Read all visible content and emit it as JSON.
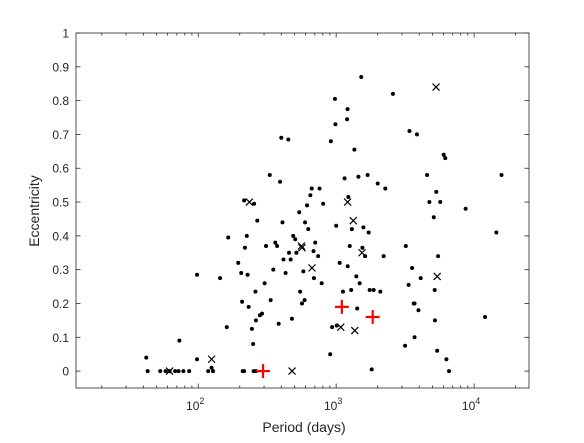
{
  "chart_data": {
    "type": "scatter",
    "title": "",
    "xlabel": "Period (days)",
    "ylabel": "Eccentricity",
    "xscale": "log",
    "xlim": [
      13,
      25000
    ],
    "ylim": [
      -0.05,
      1
    ],
    "grid": false,
    "legend": "none",
    "x_ticks": [
      {
        "value": 100,
        "base": "10",
        "exp": "2"
      },
      {
        "value": 1000,
        "base": "10",
        "exp": "3"
      },
      {
        "value": 10000,
        "base": "10",
        "exp": "4"
      }
    ],
    "y_ticks": [
      {
        "value": 0,
        "label": "0"
      },
      {
        "value": 0.1,
        "label": "0.1"
      },
      {
        "value": 0.2,
        "label": "0.2"
      },
      {
        "value": 0.3,
        "label": "0.3"
      },
      {
        "value": 0.4,
        "label": "0.4"
      },
      {
        "value": 0.5,
        "label": "0.5"
      },
      {
        "value": 0.6,
        "label": "0.6"
      },
      {
        "value": 0.7,
        "label": "0.7"
      },
      {
        "value": 0.8,
        "label": "0.8"
      },
      {
        "value": 0.9,
        "label": "0.9"
      },
      {
        "value": 1,
        "label": "1"
      }
    ],
    "colors": {
      "dots": "#000000",
      "crosses": "#000000",
      "plus": "#ff0000",
      "axes": "#262626"
    },
    "series": [
      {
        "marker": "dot",
        "color": "#000000",
        "points": [
          [
            42,
            0.04
          ],
          [
            43,
            0
          ],
          [
            53,
            0
          ],
          [
            58,
            0
          ],
          [
            62,
            0
          ],
          [
            68,
            0
          ],
          [
            72,
            0
          ],
          [
            78,
            0
          ],
          [
            86,
            0
          ],
          [
            118,
            0
          ],
          [
            128,
            0
          ],
          [
            210,
            0
          ],
          [
            215,
            0
          ],
          [
            252,
            0
          ],
          [
            262,
            0
          ],
          [
            73,
            0.09
          ],
          [
            98,
            0.035
          ],
          [
            98,
            0.285
          ],
          [
            125,
            0.01
          ],
          [
            144,
            0.275
          ],
          [
            161,
            0.13
          ],
          [
            165,
            0.395
          ],
          [
            195,
            0.32
          ],
          [
            205,
            0.29
          ],
          [
            208,
            0.205
          ],
          [
            215,
            0.505
          ],
          [
            218,
            0.365
          ],
          [
            225,
            0.4
          ],
          [
            228,
            0.285
          ],
          [
            232,
            0.19
          ],
          [
            245,
            0.125
          ],
          [
            250,
            0.08
          ],
          [
            254,
            0.495
          ],
          [
            260,
            0.235
          ],
          [
            262,
            0.15
          ],
          [
            268,
            0.445
          ],
          [
            280,
            0.165
          ],
          [
            290,
            0.17
          ],
          [
            303,
            0.26
          ],
          [
            310,
            0.37
          ],
          [
            330,
            0.58
          ],
          [
            335,
            0.21
          ],
          [
            350,
            0.3
          ],
          [
            362,
            0.38
          ],
          [
            373,
            0.37
          ],
          [
            383,
            0.14
          ],
          [
            392,
            0.56
          ],
          [
            400,
            0.69
          ],
          [
            408,
            0.44
          ],
          [
            415,
            0.33
          ],
          [
            430,
            0.29
          ],
          [
            450,
            0.685
          ],
          [
            455,
            0.35
          ],
          [
            468,
            0.33
          ],
          [
            478,
            0.155
          ],
          [
            488,
            0.4
          ],
          [
            505,
            0.39
          ],
          [
            515,
            0.35
          ],
          [
            540,
            0.47
          ],
          [
            548,
            0.235
          ],
          [
            565,
            0.2
          ],
          [
            578,
            0.295
          ],
          [
            590,
            0.21
          ],
          [
            595,
            0.44
          ],
          [
            615,
            0.49
          ],
          [
            628,
            0.42
          ],
          [
            650,
            0.52
          ],
          [
            665,
            0.54
          ],
          [
            685,
            0.355
          ],
          [
            690,
            0.275
          ],
          [
            705,
            0.38
          ],
          [
            740,
            0.34
          ],
          [
            758,
            0.54
          ],
          [
            785,
            0.26
          ],
          [
            805,
            0.495
          ],
          [
            905,
            0.05
          ],
          [
            915,
            0.68
          ],
          [
            935,
            0.13
          ],
          [
            980,
            0.805
          ],
          [
            988,
            0.73
          ],
          [
            1000,
            0.43
          ],
          [
            1010,
            0.135
          ],
          [
            1060,
            0.32
          ],
          [
            1120,
            0.235
          ],
          [
            1150,
            0.57
          ],
          [
            1200,
            0.745
          ],
          [
            1210,
            0.775
          ],
          [
            1212,
            0.31
          ],
          [
            1225,
            0.515
          ],
          [
            1255,
            0.37
          ],
          [
            1285,
            0.24
          ],
          [
            1300,
            0.42
          ],
          [
            1355,
            0.655
          ],
          [
            1400,
            0.28
          ],
          [
            1420,
            0.185
          ],
          [
            1450,
            0.575
          ],
          [
            1480,
            0.26
          ],
          [
            1520,
            0.87
          ],
          [
            1550,
            0.365
          ],
          [
            1575,
            0.425
          ],
          [
            1620,
            0.34
          ],
          [
            1690,
            0.58
          ],
          [
            1720,
            0.41
          ],
          [
            1750,
            0.24
          ],
          [
            1810,
            0.005
          ],
          [
            1870,
            0.24
          ],
          [
            2000,
            0.555
          ],
          [
            2090,
            0.235
          ],
          [
            2210,
            0.34
          ],
          [
            2270,
            0.54
          ],
          [
            2580,
            0.82
          ],
          [
            3160,
            0.075
          ],
          [
            3200,
            0.37
          ],
          [
            3350,
            0.255
          ],
          [
            3400,
            0.71
          ],
          [
            3550,
            0.305
          ],
          [
            3650,
            0.2
          ],
          [
            3700,
            0.2
          ],
          [
            3850,
            0.7
          ],
          [
            3950,
            0.18
          ],
          [
            4560,
            0.58
          ],
          [
            4740,
            0.5
          ],
          [
            5100,
            0.455
          ],
          [
            5180,
            0.24
          ],
          [
            5200,
            0.15
          ],
          [
            5320,
            0.53
          ],
          [
            5400,
            0.06
          ],
          [
            5480,
            0.34
          ],
          [
            5680,
            0.5
          ],
          [
            6020,
            0.64
          ],
          [
            6180,
            0.63
          ],
          [
            6300,
            0.035
          ],
          [
            6580,
            0.0
          ],
          [
            8680,
            0.48
          ],
          [
            12000,
            0.16
          ],
          [
            14500,
            0.41
          ],
          [
            15800,
            0.58
          ],
          [
            4100,
            0.275
          ],
          [
            3700,
            0.1
          ]
        ]
      },
      {
        "marker": "x",
        "color": "#000000",
        "points": [
          [
            62,
            0
          ],
          [
            125,
            0.035
          ],
          [
            235,
            0.5
          ],
          [
            479,
            0
          ],
          [
            565,
            0.365
          ],
          [
            560,
            0.37
          ],
          [
            668,
            0.305
          ],
          [
            1080,
            0.13
          ],
          [
            1210,
            0.5
          ],
          [
            1330,
            0.445
          ],
          [
            1365,
            0.12
          ],
          [
            1540,
            0.35
          ],
          [
            5300,
            0.84
          ],
          [
            5400,
            0.28
          ]
        ]
      },
      {
        "marker": "plus",
        "color": "#ff0000",
        "points": [
          [
            295,
            0
          ],
          [
            1100,
            0.19
          ],
          [
            1840,
            0.16
          ]
        ]
      }
    ]
  }
}
